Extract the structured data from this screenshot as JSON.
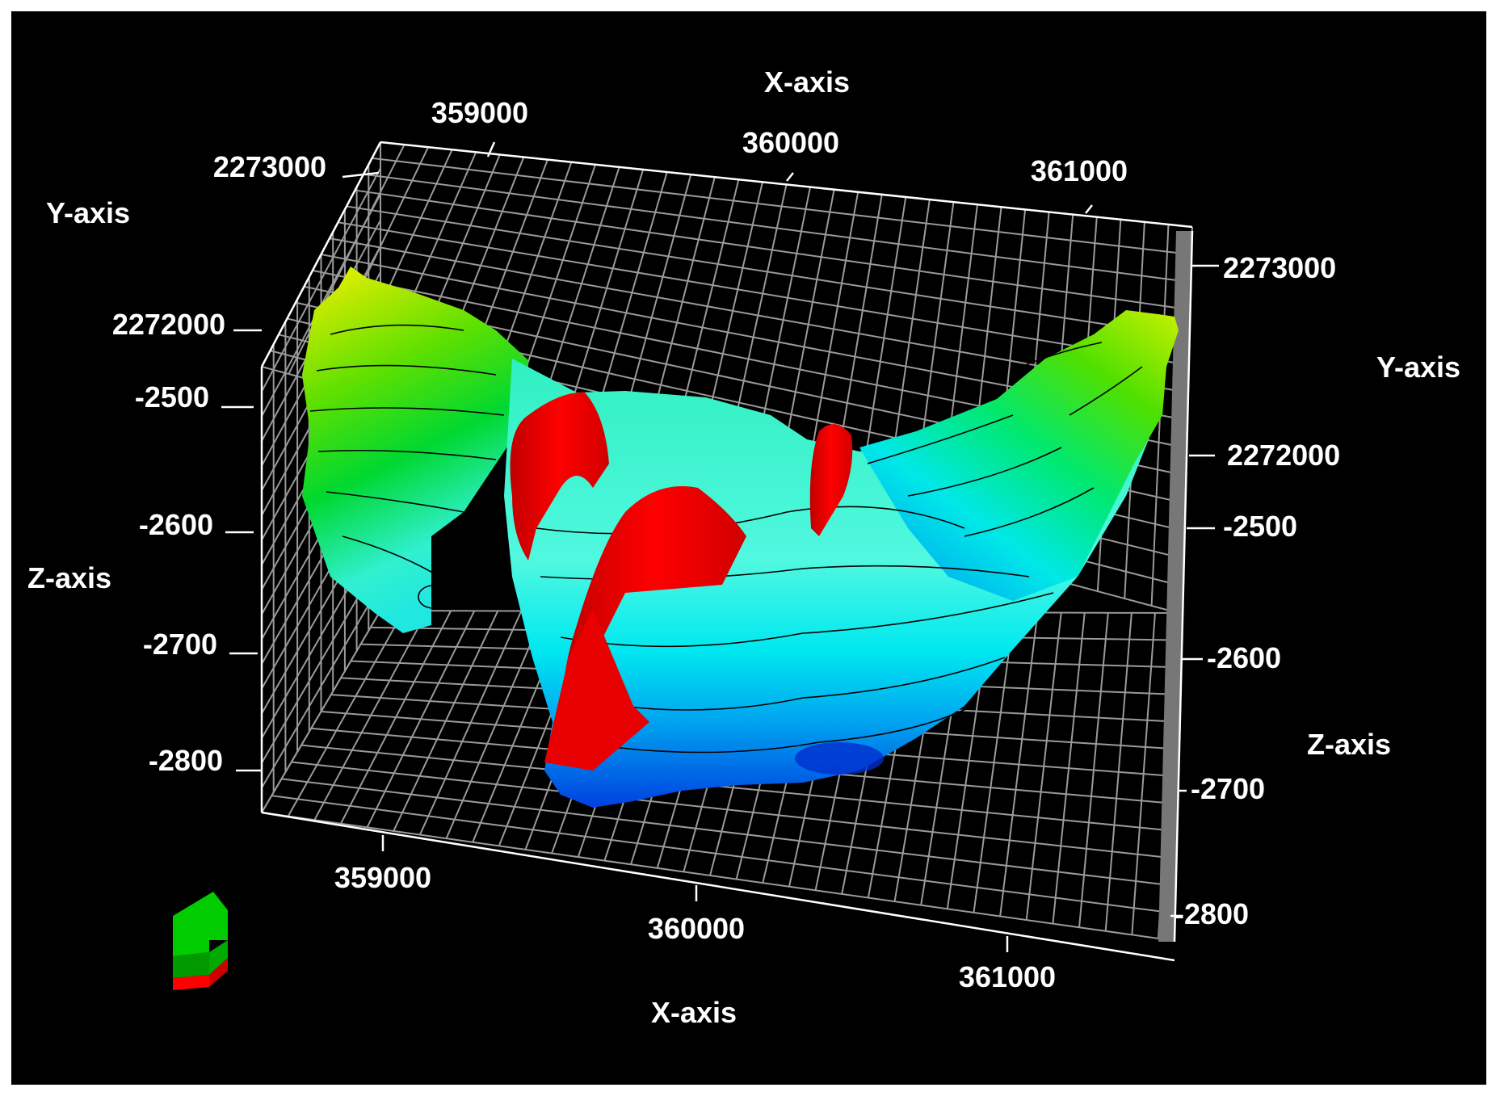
{
  "chart_data": {
    "type": "surface3d",
    "background": "#000000",
    "axes": {
      "x": {
        "label": "X-axis",
        "ticks": [
          "359000",
          "360000",
          "361000"
        ]
      },
      "y": {
        "label": "Y-axis",
        "ticks": [
          "2272000",
          "2273000"
        ]
      },
      "z": {
        "label": "Z-axis",
        "ticks": [
          "-2500",
          "-2600",
          "-2700",
          "-2800"
        ]
      }
    },
    "x_range": [
      358500,
      361300
    ],
    "y_range": [
      2271500,
      2273300
    ],
    "z_range": [
      -2850,
      -2450
    ],
    "grid": true,
    "colormap": [
      "#0000ff",
      "#00b0ff",
      "#00ffe0",
      "#00e000",
      "#ffff00"
    ],
    "fault_color": "#ff0000",
    "orientation_indicator_colors": [
      "#00cc00",
      "#ff0000"
    ],
    "surfaces": [
      {
        "type": "horizon",
        "has_contours": true
      },
      {
        "type": "fault",
        "count": 3
      }
    ]
  }
}
